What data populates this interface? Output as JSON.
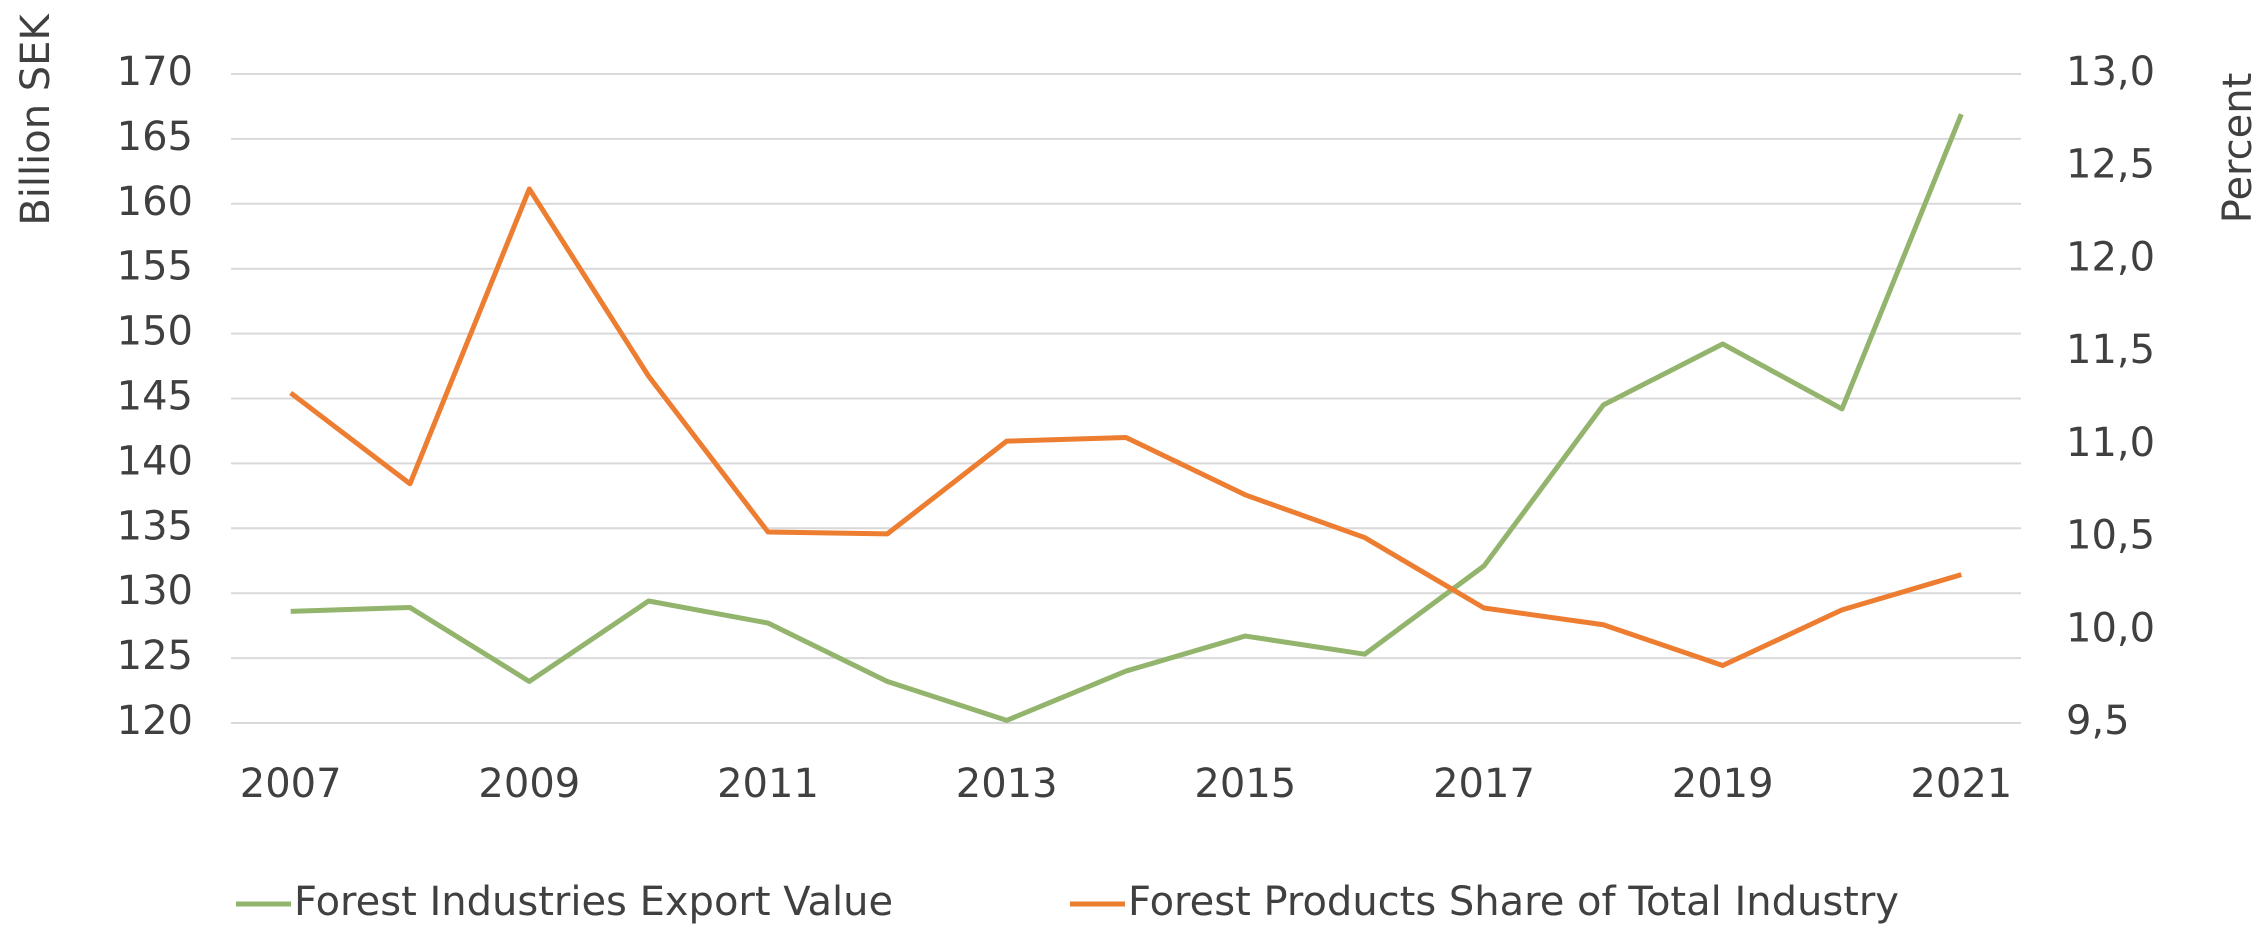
{
  "chart_data": {
    "type": "line",
    "x": [
      2007,
      2008,
      2009,
      2010,
      2011,
      2012,
      2013,
      2014,
      2015,
      2016,
      2017,
      2018,
      2019,
      2020,
      2021
    ],
    "xlim": [
      2006.5,
      2021.5
    ],
    "xticks": [
      2007,
      2009,
      2011,
      2013,
      2015,
      2017,
      2019,
      2021
    ],
    "ylabel": "Billion SEK",
    "y2label": "Percent",
    "ylim": [
      120,
      170
    ],
    "yticks": [
      120,
      125,
      130,
      135,
      140,
      145,
      150,
      155,
      160,
      165,
      170
    ],
    "y2lim": [
      9.5,
      13.0
    ],
    "y2ticks": [
      {
        "value": 9.5,
        "label": "9,5"
      },
      {
        "value": 10.0,
        "label": "10,0"
      },
      {
        "value": 10.5,
        "label": "10,5"
      },
      {
        "value": 11.0,
        "label": "11,0"
      },
      {
        "value": 11.5,
        "label": "11,5"
      },
      {
        "value": 12.0,
        "label": "12,0"
      },
      {
        "value": 12.5,
        "label": "12,5"
      },
      {
        "value": 13.0,
        "label": "13,0"
      }
    ],
    "grid": true,
    "legend": "bottom",
    "series": [
      {
        "name": "Forest Industries Export Value",
        "color": "#93b46c",
        "values": [
          128.6,
          128.9,
          123.2,
          129.4,
          127.7,
          123.2,
          120.2,
          124.0,
          126.7,
          125.3,
          132.1,
          144.5,
          149.2,
          144.2,
          166.9
        ]
      },
      {
        "name": "Forest Products Share of Total Industry",
        "color": "#ed7d31",
        "axis": "y2",
        "values": [
          11.28,
          10.79,
          12.38,
          11.37,
          10.53,
          10.52,
          11.02,
          11.04,
          10.73,
          10.5,
          10.12,
          10.03,
          9.81,
          10.11,
          10.3
        ]
      }
    ]
  }
}
